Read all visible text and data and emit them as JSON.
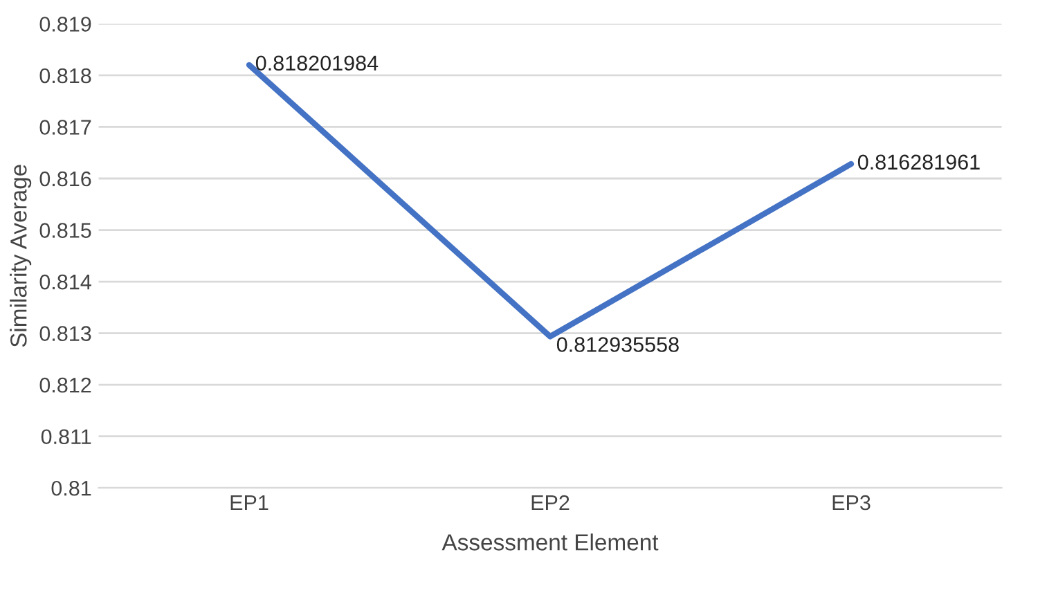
{
  "chart_data": {
    "type": "line",
    "xlabel": "Assessment Element",
    "ylabel": "Similarity Average",
    "categories": [
      "EP1",
      "EP2",
      "EP3"
    ],
    "series": [
      {
        "color": "#4472c4",
        "values": [
          0.818201984,
          0.812935558,
          0.816281961
        ]
      }
    ],
    "ylim": [
      0.81,
      0.819
    ],
    "yticks": [
      0.81,
      0.811,
      0.812,
      0.813,
      0.814,
      0.815,
      0.816,
      0.817,
      0.818,
      0.819
    ],
    "grid": "y",
    "data_labels": true,
    "marker": "none",
    "line_style": "solid"
  }
}
